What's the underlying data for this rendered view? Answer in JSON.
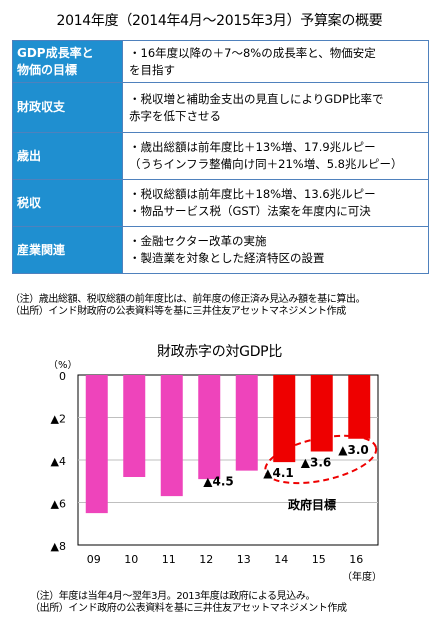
{
  "title": "2014年度（2014年4月～2015年3月）予算案の概要",
  "table": {
    "rows": [
      {
        "head": [
          "GDP成長率と",
          "物価の目標"
        ],
        "lines": [
          "・16年度以降の＋7～8%の成長率と、物価安定",
          "を目指す"
        ]
      },
      {
        "head": [
          "財政収支"
        ],
        "lines": [
          "・税収増と補助金支出の見直しによりGDP比率で",
          "赤字を低下させる"
        ]
      },
      {
        "head": [
          "歳出"
        ],
        "lines": [
          "・歳出総額は前年度比＋13%増、17.9兆ルピー",
          "（うちインフラ整備向け同＋21%増、5.8兆ルピー）"
        ]
      },
      {
        "head": [
          "税収"
        ],
        "lines": [
          "・税収総額は前年度比＋18%増、13.6兆ルピー",
          "・物品サービス税（GST）法案を年度内に可決"
        ]
      },
      {
        "head": [
          "産業関連"
        ],
        "lines": [
          "・金融セクター改革の実施",
          "・製造業を対象とした経済特区の設置"
        ]
      }
    ]
  },
  "note_top": [
    "（注）歳出総額、税収総額の前年度比は、前年度の修正済み見込み額を基に算出。",
    "（出所）インド財政府の公表資料等を基に三井住友アセットマネジメント作成"
  ],
  "chart_data": {
    "type": "bar",
    "title": "財政赤字の対GDP比",
    "ylabel": "（%）",
    "xlabel": "（年度）",
    "ylim": [
      0,
      8
    ],
    "y_ticks": [
      "0",
      "▲2",
      "▲4",
      "▲6",
      "▲8"
    ],
    "categories": [
      "09",
      "10",
      "11",
      "12",
      "13",
      "14",
      "15",
      "16"
    ],
    "values": [
      6.5,
      4.8,
      5.7,
      4.9,
      4.5,
      4.1,
      3.6,
      3.0
    ],
    "bar_colors": [
      "#ee44bb",
      "#ee44bb",
      "#ee44bb",
      "#ee44bb",
      "#ee44bb",
      "#ee0000",
      "#ee0000",
      "#ee0000"
    ],
    "data_labels": [
      "",
      "",
      "",
      "",
      "▲4.5",
      "▲4.1",
      "▲3.6",
      "▲3.0"
    ],
    "annotation": "政府目標",
    "grid": true,
    "grid_color": "#bfbfbf"
  },
  "note_bottom": [
    "（注）年度は当年4月～翌年3月。2013年度は政府による見込み。",
    "（出所）インド政府の公表資料を基に三井住友アセットマネジメント作成"
  ]
}
